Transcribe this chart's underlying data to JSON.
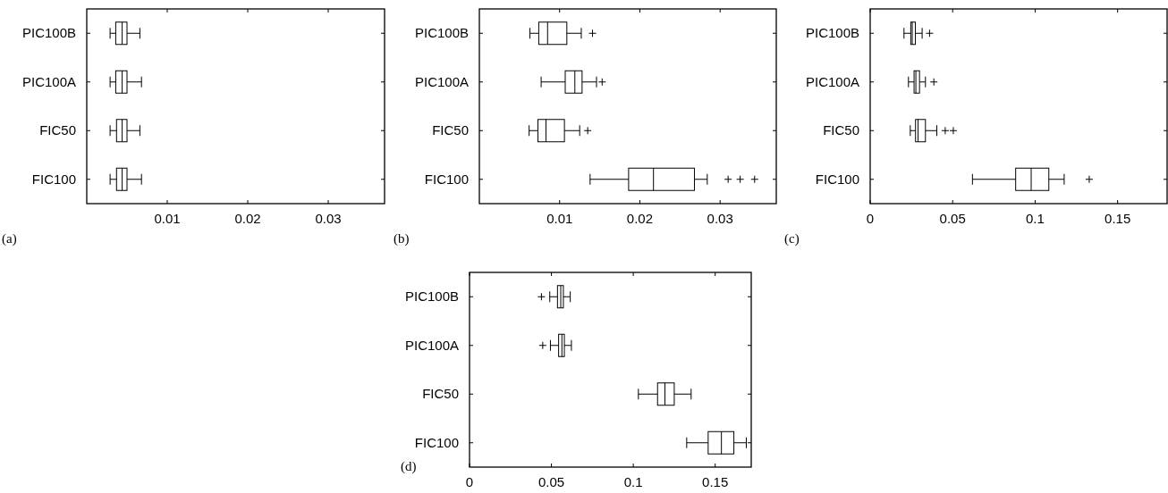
{
  "chart_data": [
    {
      "type": "box",
      "orientation": "horizontal",
      "categories": [
        "PIC100B",
        "PIC100A",
        "FIC50",
        "FIC100"
      ],
      "xlim": [
        0,
        0.037
      ],
      "xticks": [
        0.01,
        0.02,
        0.03
      ],
      "grid": false,
      "annotations": [
        "(a)"
      ],
      "boxes": [
        {
          "low": 0.0029,
          "q1": 0.0036,
          "median": 0.0044,
          "q3": 0.005,
          "high": 0.0066
        },
        {
          "low": 0.0029,
          "q1": 0.0036,
          "median": 0.0044,
          "q3": 0.005,
          "high": 0.0068
        },
        {
          "low": 0.0029,
          "q1": 0.0037,
          "median": 0.0044,
          "q3": 0.005,
          "high": 0.0066
        },
        {
          "low": 0.0029,
          "q1": 0.0037,
          "median": 0.0044,
          "q3": 0.005,
          "high": 0.0068
        }
      ]
    },
    {
      "type": "box",
      "orientation": "horizontal",
      "categories": [
        "PIC100B",
        "PIC100A",
        "FIC50",
        "FIC100"
      ],
      "xlim": [
        0,
        0.037
      ],
      "xticks": [
        0.01,
        0.02,
        0.03
      ],
      "grid": false,
      "annotations": [
        "(b)"
      ],
      "boxes": [
        {
          "low": 0.0063,
          "q1": 0.0074,
          "median": 0.0085,
          "q3": 0.0109,
          "high": 0.0127,
          "outliers": [
            0.0141
          ]
        },
        {
          "low": 0.0077,
          "q1": 0.0107,
          "median": 0.0119,
          "q3": 0.0128,
          "high": 0.0146,
          "outliers": [
            0.0153
          ]
        },
        {
          "low": 0.0062,
          "q1": 0.0073,
          "median": 0.0083,
          "q3": 0.0106,
          "high": 0.0125,
          "outliers": [
            0.0135
          ]
        },
        {
          "low": 0.0138,
          "q1": 0.0186,
          "median": 0.0217,
          "q3": 0.0268,
          "high": 0.0284,
          "outliers": [
            0.031,
            0.0325,
            0.0343
          ]
        }
      ]
    },
    {
      "type": "box",
      "orientation": "horizontal",
      "categories": [
        "PIC100B",
        "PIC100A",
        "FIC50",
        "FIC100"
      ],
      "xlim": [
        0,
        0.18
      ],
      "xticks": [
        0,
        0.05,
        0.1,
        0.15
      ],
      "grid": false,
      "annotations": [
        "(c)"
      ],
      "boxes": [
        {
          "low": 0.0205,
          "q1": 0.0246,
          "median": 0.0255,
          "q3": 0.0274,
          "high": 0.0315,
          "outliers": [
            0.036
          ]
        },
        {
          "low": 0.0232,
          "q1": 0.0266,
          "median": 0.0277,
          "q3": 0.0299,
          "high": 0.0335,
          "outliers": [
            0.0386
          ]
        },
        {
          "low": 0.0243,
          "q1": 0.0275,
          "median": 0.029,
          "q3": 0.0335,
          "high": 0.0404,
          "outliers": [
            0.0455,
            0.0504
          ]
        },
        {
          "low": 0.062,
          "q1": 0.0882,
          "median": 0.0976,
          "q3": 0.1083,
          "high": 0.1176,
          "outliers": [
            0.1328
          ]
        }
      ]
    },
    {
      "type": "box",
      "orientation": "horizontal",
      "categories": [
        "PIC100B",
        "PIC100A",
        "FIC50",
        "FIC100"
      ],
      "xlim": [
        0,
        0.172
      ],
      "xticks": [
        0,
        0.05,
        0.1,
        0.15
      ],
      "grid": false,
      "annotations": [
        "(d)"
      ],
      "boxes": [
        {
          "low": 0.049,
          "q1": 0.0537,
          "median": 0.0557,
          "q3": 0.0573,
          "high": 0.0615,
          "outliers": [
            0.0439
          ]
        },
        {
          "low": 0.0494,
          "q1": 0.0544,
          "median": 0.0564,
          "q3": 0.0579,
          "high": 0.0622,
          "outliers": [
            0.0447
          ]
        },
        {
          "low": 0.1031,
          "q1": 0.1148,
          "median": 0.1193,
          "q3": 0.125,
          "high": 0.1353
        },
        {
          "low": 0.1326,
          "q1": 0.1457,
          "median": 0.1538,
          "q3": 0.1614,
          "high": 0.169
        }
      ]
    }
  ]
}
